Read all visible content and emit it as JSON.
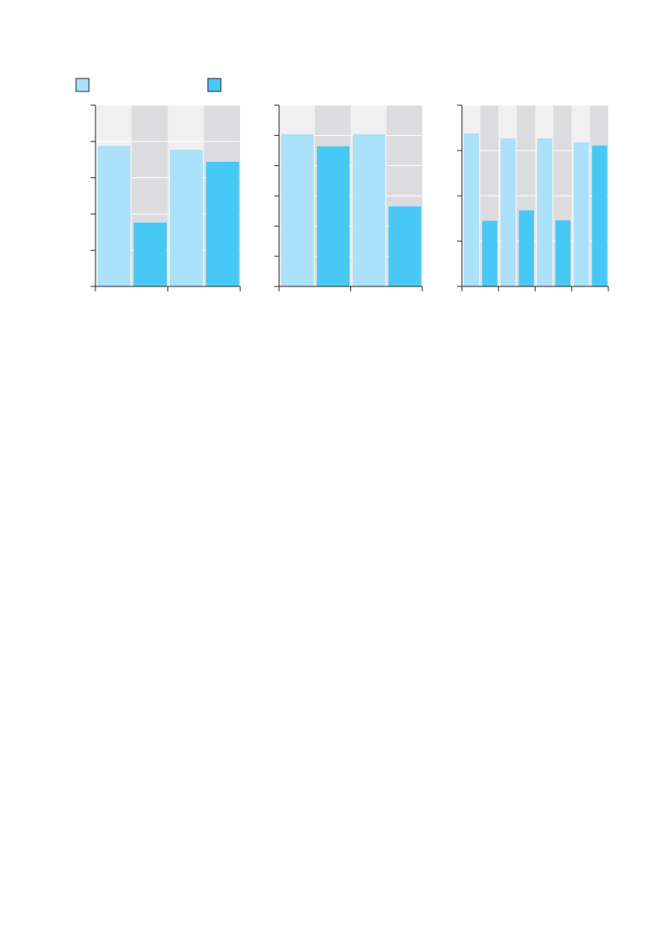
{
  "chart_data": [
    {
      "type": "bar",
      "categories": [
        null,
        null
      ],
      "series": [
        {
          "color": "#abe1fa",
          "values": [
            3.88,
            3.77
          ]
        },
        {
          "color": "#48c9f5",
          "values": [
            1.76,
            3.44
          ]
        }
      ],
      "ylim": [
        0,
        5
      ],
      "yticks": [
        0,
        1,
        2,
        3,
        4,
        5
      ],
      "grid": true
    },
    {
      "type": "bar",
      "categories": [
        null,
        null
      ],
      "series": [
        {
          "color": "#abe1fa",
          "values": [
            5.04,
            5.04
          ]
        },
        {
          "color": "#48c9f5",
          "values": [
            4.64,
            2.65
          ]
        }
      ],
      "ylim": [
        0,
        6
      ],
      "yticks": [
        0,
        1,
        2,
        3,
        4,
        5,
        6
      ],
      "grid": true
    },
    {
      "type": "bar",
      "categories": [
        null,
        null,
        null,
        null
      ],
      "series": [
        {
          "color": "#abe1fa",
          "values": [
            3.38,
            3.27,
            3.27,
            3.18
          ]
        },
        {
          "color": "#48c9f5",
          "values": [
            1.45,
            1.68,
            1.46,
            3.11
          ]
        }
      ],
      "ylim": [
        0,
        4
      ],
      "yticks": [
        0,
        1,
        2,
        3,
        4
      ],
      "grid": true
    }
  ]
}
